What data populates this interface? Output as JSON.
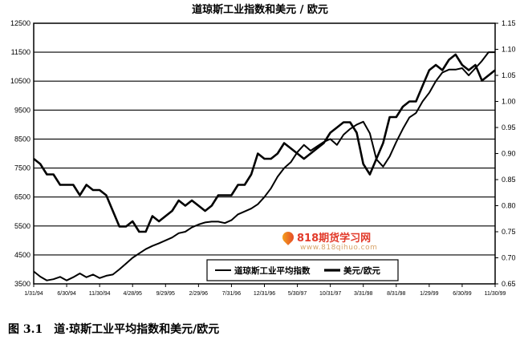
{
  "chart_data": {
    "type": "line",
    "title": "道琼斯工业指数和美元 / 欧元",
    "caption_number": "图 3.1",
    "caption_text": "道·琼斯工业平均指数和美元/欧元",
    "x_tick_labels": [
      "1/31/94",
      "6/30/94",
      "11/30/94",
      "4/28/95",
      "9/29/95",
      "2/29/96",
      "7/31/96",
      "12/31/96",
      "5/30/97",
      "10/31/97",
      "3/31/98",
      "8/31/98",
      "1/29/99",
      "6/30/99",
      "11/30/99"
    ],
    "y_left": {
      "min": 3500,
      "max": 12500,
      "ticks": [
        3500,
        4500,
        5500,
        6500,
        7500,
        8500,
        9500,
        10500,
        11500,
        12500
      ],
      "tick_labels": [
        "3500",
        "4500",
        "5500",
        "6500",
        "7500",
        "8500",
        "9500",
        "10500",
        "11500",
        "12500"
      ]
    },
    "y_right": {
      "min": 0.65,
      "max": 1.15,
      "ticks": [
        0.65,
        0.7,
        0.75,
        0.8,
        0.85,
        0.9,
        0.95,
        1.0,
        1.05,
        1.1,
        1.15
      ],
      "tick_labels": [
        "0.65",
        "0.70",
        "0.75",
        "0.80",
        "0.85",
        "0.90",
        "0.95",
        "1.00",
        "1.05",
        "1.10",
        "1.15"
      ]
    },
    "grid": true,
    "legend_position": "bottom-right",
    "series": [
      {
        "name": "道琼斯工业平均指数",
        "axis": "left",
        "x": [
          0,
          1,
          2,
          3,
          4,
          5,
          6,
          7,
          8,
          9,
          10,
          11,
          12,
          13,
          14,
          15,
          16,
          17,
          18,
          19,
          20,
          21,
          22,
          23,
          24,
          25,
          26,
          27,
          28,
          29,
          30,
          31,
          32,
          33,
          34,
          35,
          36,
          37,
          38,
          39,
          40,
          41,
          42,
          43,
          44,
          45,
          46,
          47,
          48,
          49,
          50,
          51,
          52,
          53,
          54,
          55,
          56,
          57,
          58,
          59,
          60,
          61,
          62,
          63,
          64,
          65,
          66,
          67,
          68,
          69,
          70
        ],
        "y": [
          3930,
          3750,
          3620,
          3660,
          3740,
          3620,
          3730,
          3860,
          3730,
          3820,
          3700,
          3780,
          3820,
          4000,
          4200,
          4400,
          4550,
          4700,
          4810,
          4900,
          5000,
          5100,
          5250,
          5300,
          5450,
          5550,
          5620,
          5650,
          5650,
          5600,
          5700,
          5900,
          6000,
          6100,
          6250,
          6500,
          6800,
          7200,
          7500,
          7700,
          8050,
          8300,
          8100,
          8250,
          8400,
          8500,
          8300,
          8650,
          8850,
          9000,
          9100,
          8700,
          7800,
          7550,
          7900,
          8400,
          8850,
          9250,
          9400,
          9800,
          10100,
          10500,
          10800,
          10900,
          10900,
          10950,
          10700,
          10950,
          11200,
          11500,
          11500
        ]
      },
      {
        "name": "美元/欧元",
        "axis": "right",
        "x": [
          0,
          1,
          2,
          3,
          4,
          5,
          6,
          7,
          8,
          9,
          10,
          11,
          12,
          13,
          14,
          15,
          16,
          17,
          18,
          19,
          20,
          21,
          22,
          23,
          24,
          25,
          26,
          27,
          28,
          29,
          30,
          31,
          32,
          33,
          34,
          35,
          36,
          37,
          38,
          39,
          40,
          41,
          42,
          43,
          44,
          45,
          46,
          47,
          48,
          49,
          50,
          51,
          52,
          53,
          54,
          55,
          56,
          57,
          58,
          59,
          60,
          61,
          62,
          63,
          64,
          65,
          66,
          67,
          68,
          69,
          70
        ],
        "y": [
          0.89,
          0.88,
          0.86,
          0.86,
          0.84,
          0.84,
          0.84,
          0.82,
          0.84,
          0.83,
          0.83,
          0.82,
          0.79,
          0.76,
          0.76,
          0.77,
          0.75,
          0.75,
          0.78,
          0.77,
          0.78,
          0.79,
          0.81,
          0.8,
          0.81,
          0.8,
          0.79,
          0.8,
          0.82,
          0.82,
          0.82,
          0.84,
          0.84,
          0.86,
          0.9,
          0.89,
          0.89,
          0.9,
          0.92,
          0.91,
          0.9,
          0.89,
          0.9,
          0.91,
          0.92,
          0.94,
          0.95,
          0.96,
          0.96,
          0.94,
          0.88,
          0.86,
          0.89,
          0.92,
          0.97,
          0.97,
          0.99,
          1.0,
          1.0,
          1.03,
          1.06,
          1.07,
          1.06,
          1.08,
          1.09,
          1.07,
          1.06,
          1.07,
          1.04,
          1.05,
          1.06
        ]
      }
    ]
  },
  "watermark": {
    "brand": "818期货学习网",
    "url": "www.818qihuo.com"
  }
}
